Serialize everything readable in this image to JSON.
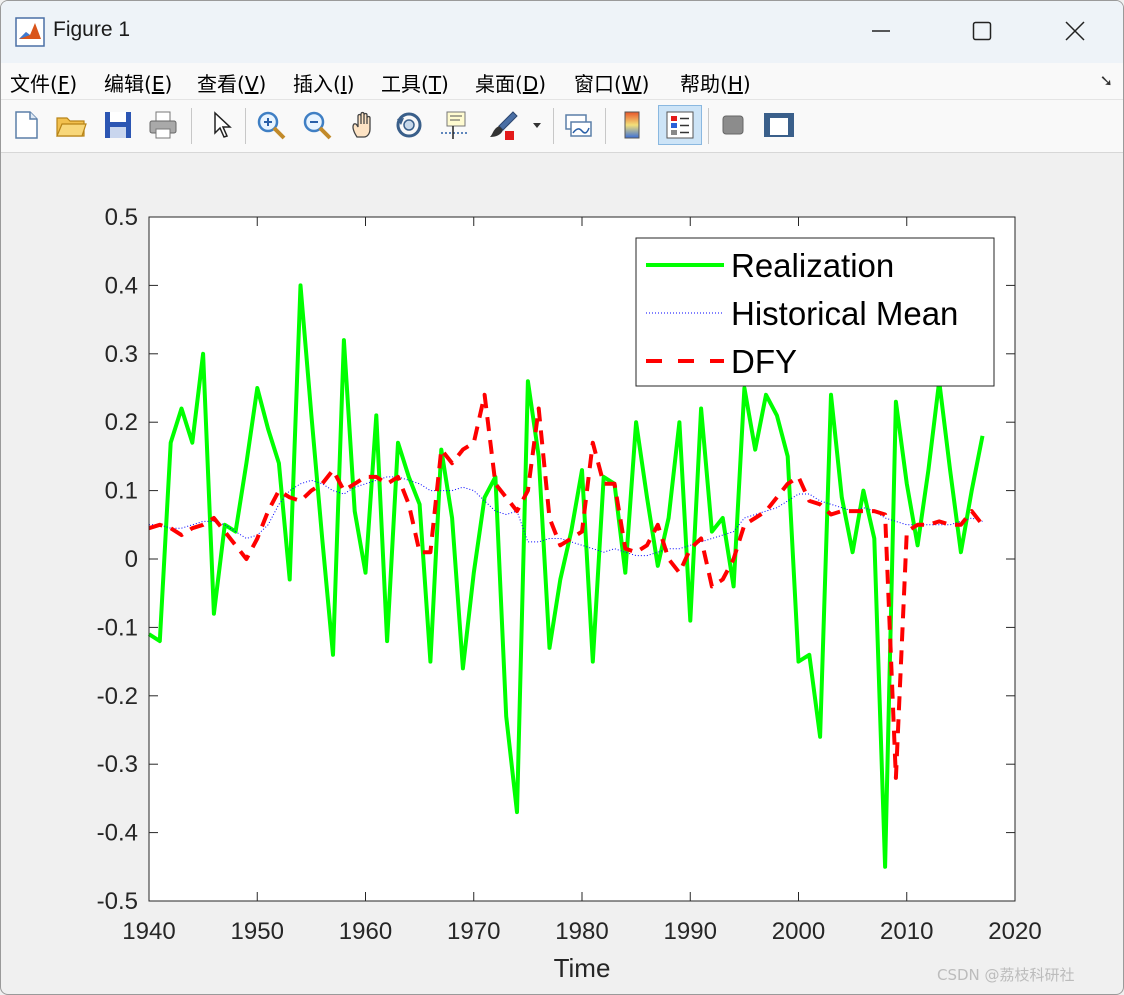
{
  "window": {
    "title": "Figure 1",
    "controls": {
      "minimize": "minimize",
      "maximize": "maximize",
      "close": "close"
    }
  },
  "menu": [
    {
      "label": "文件(",
      "acc": "F",
      "end": ")"
    },
    {
      "label": "编辑(",
      "acc": "E",
      "end": ")"
    },
    {
      "label": "查看(",
      "acc": "V",
      "end": ")"
    },
    {
      "label": "插入(",
      "acc": "I",
      "end": ")"
    },
    {
      "label": "工具(",
      "acc": "T",
      "end": ")"
    },
    {
      "label": "桌面(",
      "acc": "D",
      "end": ")"
    },
    {
      "label": "窗口(",
      "acc": "W",
      "end": ")"
    },
    {
      "label": "帮助(",
      "acc": "H",
      "end": ")"
    }
  ],
  "toolbar_icons": [
    "new-file-icon",
    "open-folder-icon",
    "save-icon",
    "print-icon",
    "pointer-icon",
    "zoom-in-icon",
    "zoom-out-icon",
    "pan-hand-icon",
    "rotate-3d-icon",
    "data-cursor-icon",
    "brush-icon",
    "link-plot-icon",
    "colorbar-icon",
    "legend-icon",
    "hide-plot-tools-icon",
    "show-plot-tools-icon"
  ],
  "watermark": "CSDN @荔枝科研社",
  "chart_data": {
    "type": "line",
    "xlabel": "Time",
    "ylabel": "",
    "xlim": [
      1940,
      2020
    ],
    "ylim": [
      -0.5,
      0.5
    ],
    "xticks": [
      "1940",
      "1950",
      "1960",
      "1970",
      "1980",
      "1990",
      "2000",
      "2010",
      "2020"
    ],
    "yticks": [
      "0.5",
      "0.4",
      "0.3",
      "0.2",
      "0.1",
      "0",
      "-0.1",
      "-0.2",
      "-0.3",
      "-0.4",
      "-0.5"
    ],
    "legend_position": "top-right",
    "x": [
      1940,
      1941,
      1942,
      1943,
      1944,
      1945,
      1946,
      1947,
      1948,
      1949,
      1950,
      1951,
      1952,
      1953,
      1954,
      1955,
      1956,
      1957,
      1958,
      1959,
      1960,
      1961,
      1962,
      1963,
      1964,
      1965,
      1966,
      1967,
      1968,
      1969,
      1970,
      1971,
      1972,
      1973,
      1974,
      1975,
      1976,
      1977,
      1978,
      1979,
      1980,
      1981,
      1982,
      1983,
      1984,
      1985,
      1986,
      1987,
      1988,
      1989,
      1990,
      1991,
      1992,
      1993,
      1994,
      1995,
      1996,
      1997,
      1998,
      1999,
      2000,
      2001,
      2002,
      2003,
      2004,
      2005,
      2006,
      2007,
      2008,
      2009,
      2010,
      2011,
      2012,
      2013,
      2014,
      2015,
      2016,
      2017
    ],
    "series": [
      {
        "name": "Realization",
        "color": "#00ff00",
        "style": "solid",
        "values": [
          -0.11,
          -0.12,
          0.17,
          0.22,
          0.17,
          0.3,
          -0.08,
          0.05,
          0.04,
          0.14,
          0.25,
          0.19,
          0.14,
          -0.03,
          0.4,
          0.21,
          0.03,
          -0.14,
          0.32,
          0.07,
          -0.02,
          0.21,
          -0.12,
          0.17,
          0.12,
          0.08,
          -0.15,
          0.16,
          0.06,
          -0.16,
          -0.02,
          0.09,
          0.12,
          -0.23,
          -0.37,
          0.26,
          0.15,
          -0.13,
          -0.03,
          0.04,
          0.13,
          -0.15,
          0.12,
          0.11,
          -0.02,
          0.2,
          0.09,
          -0.01,
          0.06,
          0.2,
          -0.09,
          0.22,
          0.04,
          0.06,
          -0.04,
          0.25,
          0.16,
          0.24,
          0.21,
          0.15,
          -0.15,
          -0.14,
          -0.26,
          0.24,
          0.09,
          0.01,
          0.1,
          0.03,
          -0.45,
          0.23,
          0.11,
          0.02,
          0.13,
          0.26,
          0.13,
          0.01,
          0.1,
          0.18
        ]
      },
      {
        "name": "Historical Mean",
        "color": "#0000ff",
        "style": "dotted",
        "values": [
          0.05,
          0.05,
          0.045,
          0.045,
          0.05,
          0.055,
          0.055,
          0.05,
          0.04,
          0.03,
          0.035,
          0.05,
          0.08,
          0.1,
          0.11,
          0.115,
          0.11,
          0.1,
          0.095,
          0.105,
          0.11,
          0.115,
          0.12,
          0.12,
          0.115,
          0.11,
          0.1,
          0.1,
          0.1,
          0.105,
          0.1,
          0.085,
          0.07,
          0.065,
          0.07,
          0.025,
          0.025,
          0.03,
          0.03,
          0.025,
          0.02,
          0.015,
          0.01,
          0.015,
          0.01,
          0.005,
          0.005,
          0.01,
          0.015,
          0.015,
          0.02,
          0.025,
          0.03,
          0.035,
          0.04,
          0.06,
          0.065,
          0.07,
          0.075,
          0.085,
          0.095,
          0.095,
          0.085,
          0.08,
          0.075,
          0.07,
          0.075,
          0.07,
          0.06,
          0.055,
          0.05,
          0.05,
          0.05,
          0.05,
          0.05,
          0.055,
          0.06,
          0.055
        ]
      },
      {
        "name": "DFY",
        "color": "#ff0000",
        "style": "dashed",
        "values": [
          0.045,
          0.05,
          0.045,
          0.035,
          0.045,
          0.05,
          0.06,
          0.04,
          0.02,
          0.0,
          0.03,
          0.07,
          0.1,
          0.09,
          0.085,
          0.1,
          0.11,
          0.13,
          0.1,
          0.11,
          0.12,
          0.12,
          0.11,
          0.12,
          0.08,
          0.01,
          0.01,
          0.16,
          0.14,
          0.16,
          0.17,
          0.24,
          0.11,
          0.09,
          0.07,
          0.1,
          0.22,
          0.06,
          0.02,
          0.03,
          0.04,
          0.17,
          0.11,
          0.11,
          0.015,
          0.01,
          0.02,
          0.05,
          0.0,
          -0.02,
          0.015,
          0.03,
          -0.04,
          -0.03,
          0.0,
          0.05,
          0.06,
          0.07,
          0.09,
          0.11,
          0.12,
          0.085,
          0.08,
          0.065,
          0.07,
          0.07,
          0.07,
          0.07,
          0.065,
          -0.32,
          0.04,
          0.05,
          0.05,
          0.055,
          0.05,
          0.05,
          0.07,
          0.05
        ]
      }
    ]
  }
}
